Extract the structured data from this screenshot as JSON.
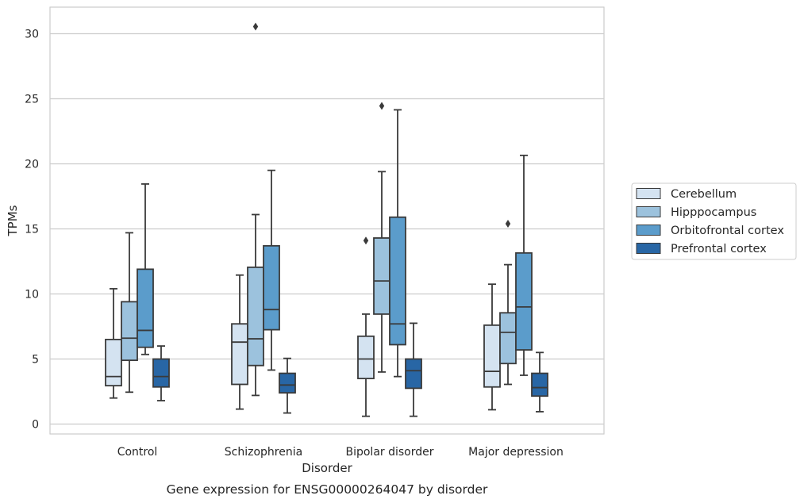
{
  "chart_data": {
    "type": "box",
    "title": "",
    "caption": "Gene expression for ENSG00000264047 by disorder",
    "xlabel": "Disorder",
    "ylabel": "TPMs",
    "ylim": [
      -0.8,
      32.0
    ],
    "yticks": [
      "0",
      "5",
      "10",
      "15",
      "20",
      "25",
      "30"
    ],
    "categories": [
      "Control",
      "Schizophrenia",
      "Bipolar disorder",
      "Major depression"
    ],
    "grid": true,
    "legend_position": "right",
    "series": [
      {
        "name": "Cerebellum",
        "color": "#d4e3f1",
        "boxes": [
          {
            "whislo": 2.0,
            "q1": 2.95,
            "med": 3.65,
            "q3": 6.5,
            "whishi": 10.4,
            "fliers": []
          },
          {
            "whislo": 1.15,
            "q1": 3.05,
            "med": 6.3,
            "q3": 7.7,
            "whishi": 11.45,
            "fliers": []
          },
          {
            "whislo": 0.6,
            "q1": 3.5,
            "med": 5.0,
            "q3": 6.75,
            "whishi": 8.45,
            "fliers": [
              14.1
            ]
          },
          {
            "whislo": 1.1,
            "q1": 2.85,
            "med": 4.05,
            "q3": 7.6,
            "whishi": 10.75,
            "fliers": []
          }
        ]
      },
      {
        "name": "Hipppocampus",
        "color": "#9cc2dd",
        "boxes": [
          {
            "whislo": 2.45,
            "q1": 4.9,
            "med": 6.6,
            "q3": 9.4,
            "whishi": 14.7,
            "fliers": []
          },
          {
            "whislo": 2.2,
            "q1": 4.5,
            "med": 6.55,
            "q3": 12.05,
            "whishi": 16.1,
            "fliers": [
              30.55
            ]
          },
          {
            "whislo": 4.0,
            "q1": 8.45,
            "med": 11.0,
            "q3": 14.3,
            "whishi": 19.4,
            "fliers": [
              24.45
            ]
          },
          {
            "whislo": 3.05,
            "q1": 4.65,
            "med": 7.05,
            "q3": 8.55,
            "whishi": 12.25,
            "fliers": [
              15.4
            ]
          }
        ]
      },
      {
        "name": "Orbitofrontal cortex",
        "color": "#5b9ccb",
        "boxes": [
          {
            "whislo": 5.35,
            "q1": 5.9,
            "med": 7.2,
            "q3": 11.9,
            "whishi": 18.45,
            "fliers": []
          },
          {
            "whislo": 4.15,
            "q1": 7.25,
            "med": 8.8,
            "q3": 13.7,
            "whishi": 19.5,
            "fliers": []
          },
          {
            "whislo": 3.65,
            "q1": 6.1,
            "med": 7.7,
            "q3": 15.9,
            "whishi": 24.15,
            "fliers": []
          },
          {
            "whislo": 3.75,
            "q1": 5.7,
            "med": 9.0,
            "q3": 13.15,
            "whishi": 20.65,
            "fliers": []
          }
        ]
      },
      {
        "name": "Prefrontal cortex",
        "color": "#2866a5",
        "boxes": [
          {
            "whislo": 1.8,
            "q1": 2.85,
            "med": 3.65,
            "q3": 5.0,
            "whishi": 6.0,
            "fliers": []
          },
          {
            "whislo": 0.85,
            "q1": 2.4,
            "med": 3.0,
            "q3": 3.9,
            "whishi": 5.05,
            "fliers": []
          },
          {
            "whislo": 0.6,
            "q1": 2.75,
            "med": 4.1,
            "q3": 5.0,
            "whishi": 7.75,
            "fliers": []
          },
          {
            "whislo": 0.95,
            "q1": 2.15,
            "med": 2.8,
            "q3": 3.9,
            "whishi": 5.5,
            "fliers": []
          }
        ]
      }
    ]
  }
}
